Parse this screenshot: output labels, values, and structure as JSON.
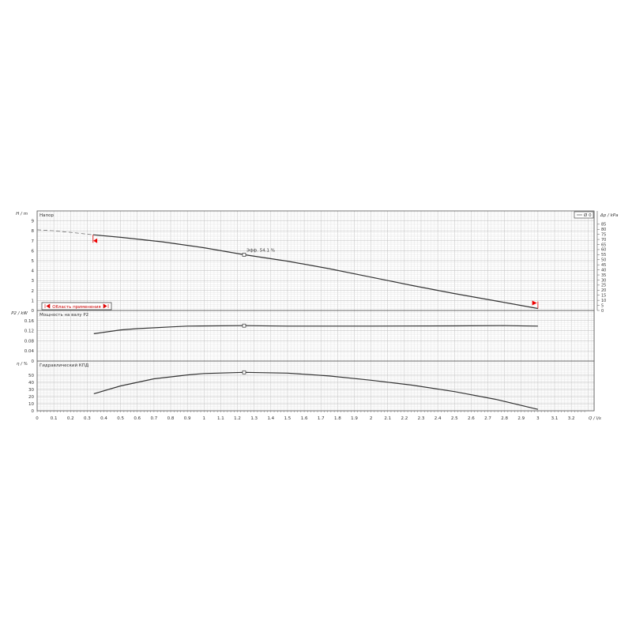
{
  "chart_data": [
    {
      "type": "line",
      "title": "Напор",
      "ylabel": "H / m",
      "ylabel_right": "Δp / kPa",
      "xlabel": "Q / l/s",
      "xlim": [
        0,
        3.36
      ],
      "ylim": [
        0,
        10
      ],
      "yticks": [
        0,
        1,
        2,
        3,
        4,
        5,
        6,
        7,
        8,
        9
      ],
      "yticks_right": [
        0,
        5,
        10,
        15,
        20,
        25,
        30,
        35,
        40,
        45,
        50,
        55,
        60,
        65,
        70,
        75,
        80,
        85
      ],
      "grid": true,
      "legend": {
        "label": "Ø 0",
        "placement": "top-right"
      },
      "range_label": "Область применения",
      "annotation": "Эфф. 54.1 %",
      "series": [
        {
          "style": "dashed",
          "x": [
            0,
            0.1,
            0.2,
            0.335
          ],
          "y": [
            8.1,
            8.0,
            7.85,
            7.6
          ]
        },
        {
          "style": "solid",
          "x": [
            0.335,
            0.5,
            0.75,
            1.0,
            1.24,
            1.5,
            1.75,
            2.0,
            2.25,
            2.5,
            2.75,
            3.0
          ],
          "y": [
            7.6,
            7.35,
            6.9,
            6.3,
            5.6,
            4.95,
            4.2,
            3.35,
            2.5,
            1.7,
            0.95,
            0.2
          ]
        }
      ],
      "marker": {
        "x": 1.24,
        "y": 5.6
      }
    },
    {
      "type": "line",
      "title": "Мощность на валу P2",
      "ylabel": "P2 / kW",
      "ylim": [
        0,
        0.2
      ],
      "yticks": [
        0,
        0.04,
        0.08,
        0.12,
        0.16
      ],
      "grid": true,
      "series": [
        {
          "x": [
            0.34,
            0.5,
            0.6,
            0.8,
            0.9,
            1.24,
            1.5,
            2.0,
            2.5,
            2.8,
            3.0
          ],
          "y": [
            0.108,
            0.123,
            0.128,
            0.135,
            0.138,
            0.14,
            0.138,
            0.138,
            0.139,
            0.14,
            0.138
          ]
        }
      ],
      "marker": {
        "x": 1.24,
        "y": 0.14
      }
    },
    {
      "type": "line",
      "title": "Гидравлический КПД",
      "ylabel": "η / %",
      "ylim": [
        0,
        70
      ],
      "yticks": [
        0,
        10,
        20,
        30,
        40,
        50
      ],
      "xticks": [
        0,
        0.1,
        0.2,
        0.3,
        0.4,
        0.5,
        0.6,
        0.7,
        0.8,
        0.9,
        1,
        1.1,
        1.2,
        1.3,
        1.4,
        1.5,
        1.6,
        1.7,
        1.8,
        1.9,
        2,
        2.1,
        2.2,
        2.3,
        2.4,
        2.5,
        2.6,
        2.7,
        2.8,
        2.9,
        3,
        3.1,
        3.2
      ],
      "grid": true,
      "series": [
        {
          "x": [
            0.34,
            0.5,
            0.7,
            0.9,
            1.0,
            1.24,
            1.5,
            1.75,
            2.0,
            2.25,
            2.5,
            2.75,
            3.0
          ],
          "y": [
            24,
            35,
            45,
            50.5,
            52.5,
            54.1,
            53,
            49,
            43,
            36,
            27,
            16,
            2
          ]
        }
      ],
      "marker": {
        "x": 1.24,
        "y": 54.1
      }
    }
  ]
}
